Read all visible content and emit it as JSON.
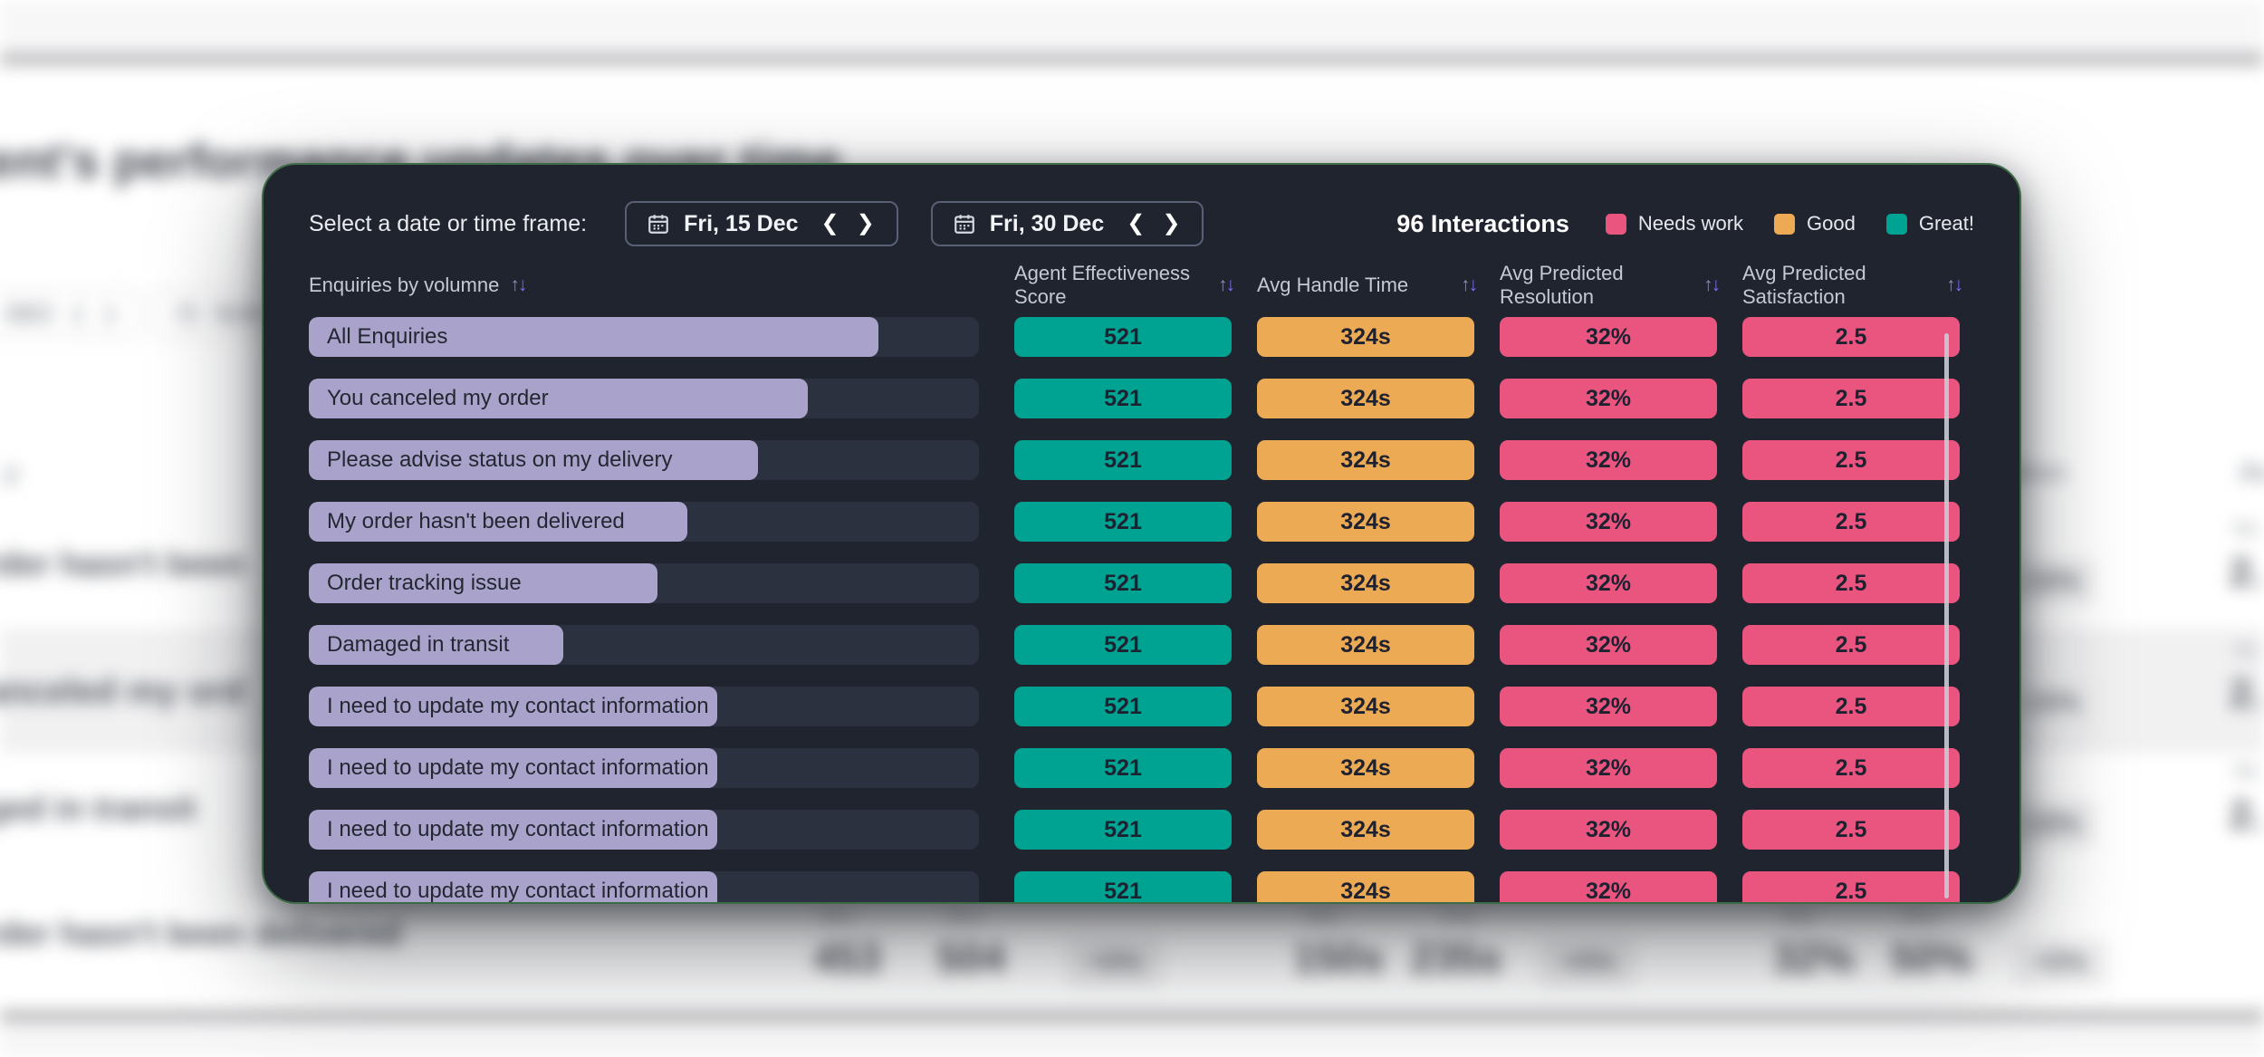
{
  "background": {
    "heading": "ent's performance updates over time",
    "toolbar_buttons": [
      {
        "label": "DEC"
      },
      {
        "label": "SUN, 1"
      }
    ],
    "row_labels": [
      "rder hasn't been",
      "anceled my ord",
      "ged in transit",
      "rder hasn't been delivered"
    ],
    "header_fragments": {
      "left": "y",
      "resolution": "ution",
      "right": "Av"
    },
    "side_rows": [
      {
        "mini_label": "Wa",
        "delta": "-15%",
        "value": "2."
      },
      {
        "mini_label": "Wa",
        "delta": "-15%",
        "value": "2."
      },
      {
        "mini_label": "Wa",
        "delta": "-15%",
        "value": "2."
      }
    ],
    "summary_groups": [
      {
        "was_label": "Was",
        "now_label": "Now",
        "was": "453",
        "now": "504",
        "delta": "+5%"
      },
      {
        "was_label": "Was",
        "now_label": "Now",
        "was": "150s",
        "now": "235s",
        "delta": "+5%"
      },
      {
        "was_label": "Was",
        "now_label": "Now",
        "was": "32%",
        "now": "50%",
        "delta": "+5%"
      }
    ]
  },
  "modal": {
    "date_prompt": "Select a date or time frame:",
    "date_pickers": [
      {
        "label": "Fri, 15 Dec"
      },
      {
        "label": "Fri, 30 Dec"
      }
    ],
    "interactions_count": "96 Interactions",
    "legend": [
      {
        "label": "Needs work",
        "color": "#ea5580"
      },
      {
        "label": "Good",
        "color": "#edaa54"
      },
      {
        "label": "Great!",
        "color": "#00a392"
      }
    ],
    "glyphs": {
      "chevron_left": "❮",
      "chevron_right": "❯",
      "sort_up": "↑",
      "sort_down": "↓"
    },
    "columns": [
      "Enquiries by volumne",
      "Agent Effectiveness Score",
      "Avg Handle Time",
      "Avg Predicted Resolution",
      "Avg Predicted Satisfaction"
    ],
    "rows": [
      {
        "label": "All Enquiries",
        "bar_pct": 85,
        "score": "521",
        "handle_time": "324s",
        "resolution": "32%",
        "satisfaction": "2.5"
      },
      {
        "label": "You canceled my order",
        "bar_pct": 74.5,
        "score": "521",
        "handle_time": "324s",
        "resolution": "32%",
        "satisfaction": "2.5"
      },
      {
        "label": "Please advise status on my delivery",
        "bar_pct": 67,
        "score": "521",
        "handle_time": "324s",
        "resolution": "32%",
        "satisfaction": "2.5"
      },
      {
        "label": "My order hasn't been delivered",
        "bar_pct": 56.5,
        "score": "521",
        "handle_time": "324s",
        "resolution": "32%",
        "satisfaction": "2.5"
      },
      {
        "label": "Order tracking issue",
        "bar_pct": 52,
        "score": "521",
        "handle_time": "324s",
        "resolution": "32%",
        "satisfaction": "2.5"
      },
      {
        "label": "Damaged in transit",
        "bar_pct": 38,
        "score": "521",
        "handle_time": "324s",
        "resolution": "32%",
        "satisfaction": "2.5"
      },
      {
        "label": "I need to update my contact information",
        "bar_pct": 61,
        "score": "521",
        "handle_time": "324s",
        "resolution": "32%",
        "satisfaction": "2.5"
      },
      {
        "label": "I need to update my contact information",
        "bar_pct": 61,
        "score": "521",
        "handle_time": "324s",
        "resolution": "32%",
        "satisfaction": "2.5"
      },
      {
        "label": "I need to update my contact information",
        "bar_pct": 61,
        "score": "521",
        "handle_time": "324s",
        "resolution": "32%",
        "satisfaction": "2.5"
      },
      {
        "label": "I need to update my contact information",
        "bar_pct": 61,
        "score": "521",
        "handle_time": "324s",
        "resolution": "32%",
        "satisfaction": "2.5"
      }
    ]
  },
  "colors": {
    "modal_bg": "#1f242f",
    "modal_border_green": "#3d6b45",
    "row_track": "#2c3140",
    "volume_bar": "#a9a2cb",
    "great_teal": "#00a392",
    "good_orange": "#edaa54",
    "needs_work_pink": "#ea5580",
    "sort_active_purple": "#7d6cf8"
  }
}
